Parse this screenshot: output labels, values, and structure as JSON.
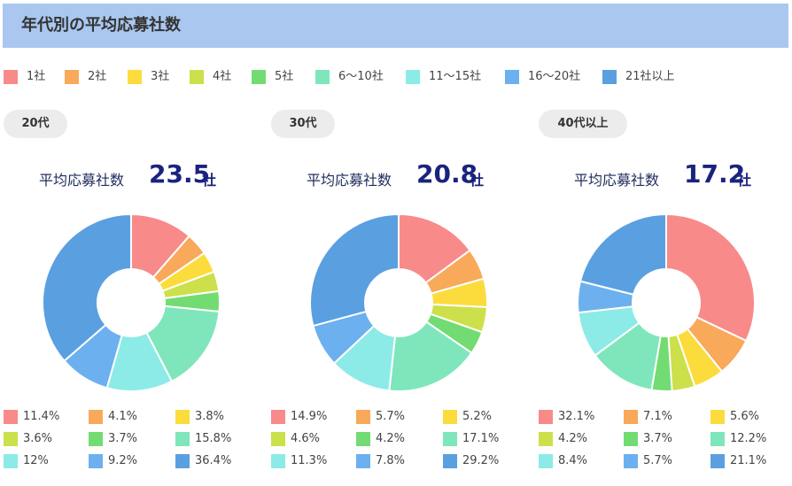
{
  "header": {
    "title": "年代別の平均応募社数"
  },
  "legend": [
    {
      "label": "1社",
      "color": "#f88a8a"
    },
    {
      "label": "2社",
      "color": "#f9a95a"
    },
    {
      "label": "3社",
      "color": "#fcdc3c"
    },
    {
      "label": "4社",
      "color": "#cbe04a"
    },
    {
      "label": "5社",
      "color": "#72dc72"
    },
    {
      "label": "6〜10社",
      "color": "#7fe6bc"
    },
    {
      "label": "11〜15社",
      "color": "#8cebe6"
    },
    {
      "label": "16〜20社",
      "color": "#6cb0ef"
    },
    {
      "label": "21社以上",
      "color": "#5aa0e0"
    }
  ],
  "chart_data": [
    {
      "type": "pie",
      "title": "20代",
      "avg_label": "平均応募社数",
      "avg_value": "23.5",
      "avg_unit": "社",
      "categories": [
        "1社",
        "2社",
        "3社",
        "4社",
        "5社",
        "6〜10社",
        "11〜15社",
        "16〜20社",
        "21社以上"
      ],
      "values": [
        11.4,
        4.1,
        3.8,
        3.6,
        3.7,
        15.8,
        12,
        9.2,
        36.4
      ],
      "value_labels": [
        "11.4%",
        "4.1%",
        "3.8%",
        "3.6%",
        "3.7%",
        "15.8%",
        "12%",
        "9.2%",
        "36.4%"
      ]
    },
    {
      "type": "pie",
      "title": "30代",
      "avg_label": "平均応募社数",
      "avg_value": "20.8",
      "avg_unit": "社",
      "categories": [
        "1社",
        "2社",
        "3社",
        "4社",
        "5社",
        "6〜10社",
        "11〜15社",
        "16〜20社",
        "21社以上"
      ],
      "values": [
        14.9,
        5.7,
        5.2,
        4.6,
        4.2,
        17.1,
        11.3,
        7.8,
        29.2
      ],
      "value_labels": [
        "14.9%",
        "5.7%",
        "5.2%",
        "4.6%",
        "4.2%",
        "17.1%",
        "11.3%",
        "7.8%",
        "29.2%"
      ]
    },
    {
      "type": "pie",
      "title": "40代以上",
      "avg_label": "平均応募社数",
      "avg_value": "17.2",
      "avg_unit": "社",
      "categories": [
        "1社",
        "2社",
        "3社",
        "4社",
        "5社",
        "6〜10社",
        "11〜15社",
        "16〜20社",
        "21社以上"
      ],
      "values": [
        32.1,
        7.1,
        5.6,
        4.2,
        3.7,
        12.2,
        8.4,
        5.7,
        21.1
      ],
      "value_labels": [
        "32.1%",
        "7.1%",
        "5.6%",
        "4.2%",
        "3.7%",
        "12.2%",
        "8.4%",
        "5.7%",
        "21.1%"
      ]
    }
  ]
}
